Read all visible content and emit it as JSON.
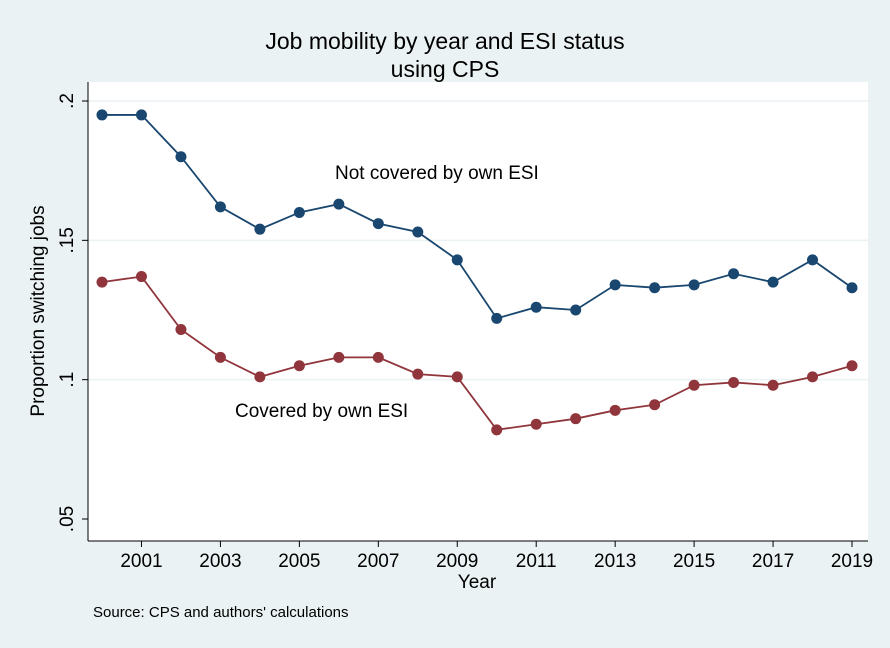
{
  "chart_data": {
    "type": "line",
    "title": "Job mobility by year and ESI status",
    "subtitle": "using CPS",
    "xlabel": "Year",
    "ylabel": "Proportion switching jobs",
    "note": "Source: CPS and authors' calculations",
    "xlim": [
      2000,
      2019
    ],
    "ylim": [
      0.05,
      0.2
    ],
    "x_ticks": [
      2001,
      2003,
      2005,
      2007,
      2009,
      2011,
      2013,
      2015,
      2017,
      2019
    ],
    "y_ticks": [
      0.05,
      0.1,
      0.15,
      0.2
    ],
    "y_tick_labels": [
      ".05",
      ".1",
      ".15",
      ".2"
    ],
    "grid": true,
    "x": [
      2000,
      2001,
      2002,
      2003,
      2004,
      2005,
      2006,
      2007,
      2008,
      2009,
      2010,
      2011,
      2012,
      2013,
      2014,
      2015,
      2016,
      2017,
      2018,
      2019
    ],
    "series": [
      {
        "name": "Not covered by own ESI",
        "color": "#1a476f",
        "values": [
          0.195,
          0.195,
          0.18,
          0.162,
          0.154,
          0.16,
          0.163,
          0.156,
          0.153,
          0.143,
          0.122,
          0.126,
          0.125,
          0.134,
          0.133,
          0.134,
          0.138,
          0.135,
          0.143,
          0.133
        ]
      },
      {
        "name": "Covered by own ESI",
        "color": "#90353b",
        "values": [
          0.135,
          0.137,
          0.118,
          0.108,
          0.101,
          0.105,
          0.108,
          0.108,
          0.102,
          0.101,
          0.082,
          0.084,
          0.086,
          0.089,
          0.091,
          0.098,
          0.099,
          0.098,
          0.101,
          0.105
        ]
      }
    ]
  }
}
